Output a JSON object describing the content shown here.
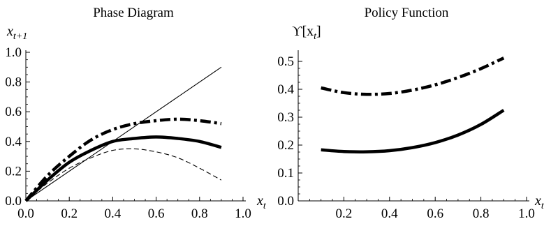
{
  "chart_data": [
    {
      "type": "line",
      "title": "Phase Diagram",
      "xlabel_main": "x",
      "xlabel_sub": "t",
      "ylabel_main": "x",
      "ylabel_sub": "t+1",
      "xlim": [
        0.0,
        1.0
      ],
      "ylim": [
        0.0,
        1.0
      ],
      "xticks": [
        0.0,
        0.2,
        0.4,
        0.6,
        0.8,
        1.0
      ],
      "yticks": [
        0.0,
        0.2,
        0.4,
        0.6,
        0.8,
        1.0
      ],
      "xtick_labels": [
        "0.0",
        "0.2",
        "0.4",
        "0.6",
        "0.8",
        "1.0"
      ],
      "ytick_labels": [
        "0.0",
        "0.2",
        "0.4",
        "0.6",
        "0.8",
        "1.0"
      ],
      "series": [
        {
          "style": "thin-solid",
          "x": [
            0.0,
            0.9
          ],
          "y": [
            0.0,
            0.9
          ]
        },
        {
          "style": "thin-dashed",
          "x": [
            0.0,
            0.1,
            0.2,
            0.3,
            0.4,
            0.5,
            0.6,
            0.7,
            0.8,
            0.9
          ],
          "y": [
            0.0,
            0.12,
            0.22,
            0.29,
            0.34,
            0.35,
            0.33,
            0.29,
            0.22,
            0.14
          ]
        },
        {
          "style": "thick-solid",
          "x": [
            0.0,
            0.1,
            0.2,
            0.3,
            0.4,
            0.5,
            0.6,
            0.7,
            0.8,
            0.9
          ],
          "y": [
            0.0,
            0.14,
            0.26,
            0.34,
            0.4,
            0.42,
            0.43,
            0.42,
            0.4,
            0.36
          ]
        },
        {
          "style": "thick-dashdot",
          "x": [
            0.0,
            0.1,
            0.2,
            0.3,
            0.4,
            0.5,
            0.6,
            0.7,
            0.8,
            0.9
          ],
          "y": [
            0.0,
            0.17,
            0.3,
            0.41,
            0.48,
            0.52,
            0.54,
            0.55,
            0.54,
            0.52
          ]
        }
      ]
    },
    {
      "type": "line",
      "title": "Policy Function",
      "xlabel_main": "x",
      "xlabel_sub": "t",
      "ylabel_main": "ϒ[x",
      "ylabel_sub": "t",
      "ylabel_end": "]",
      "xlim": [
        0.0,
        1.0
      ],
      "ylim": [
        0.0,
        0.52
      ],
      "xticks": [
        0.2,
        0.4,
        0.6,
        0.8,
        1.0
      ],
      "yticks": [
        0.0,
        0.1,
        0.2,
        0.3,
        0.4,
        0.5
      ],
      "xtick_labels": [
        "0.2",
        "0.4",
        "0.6",
        "0.8",
        "1.0"
      ],
      "ytick_labels": [
        "0.0",
        "0.1",
        "0.2",
        "0.3",
        "0.4",
        "0.5"
      ],
      "series": [
        {
          "style": "thick-solid",
          "x": [
            0.1,
            0.2,
            0.3,
            0.4,
            0.5,
            0.6,
            0.7,
            0.8,
            0.9
          ],
          "y": [
            0.183,
            0.177,
            0.176,
            0.18,
            0.191,
            0.209,
            0.236,
            0.274,
            0.325
          ]
        },
        {
          "style": "thick-dashdot",
          "x": [
            0.1,
            0.2,
            0.3,
            0.4,
            0.5,
            0.6,
            0.7,
            0.8,
            0.9
          ],
          "y": [
            0.405,
            0.388,
            0.382,
            0.385,
            0.397,
            0.416,
            0.442,
            0.474,
            0.512
          ]
        }
      ]
    }
  ]
}
